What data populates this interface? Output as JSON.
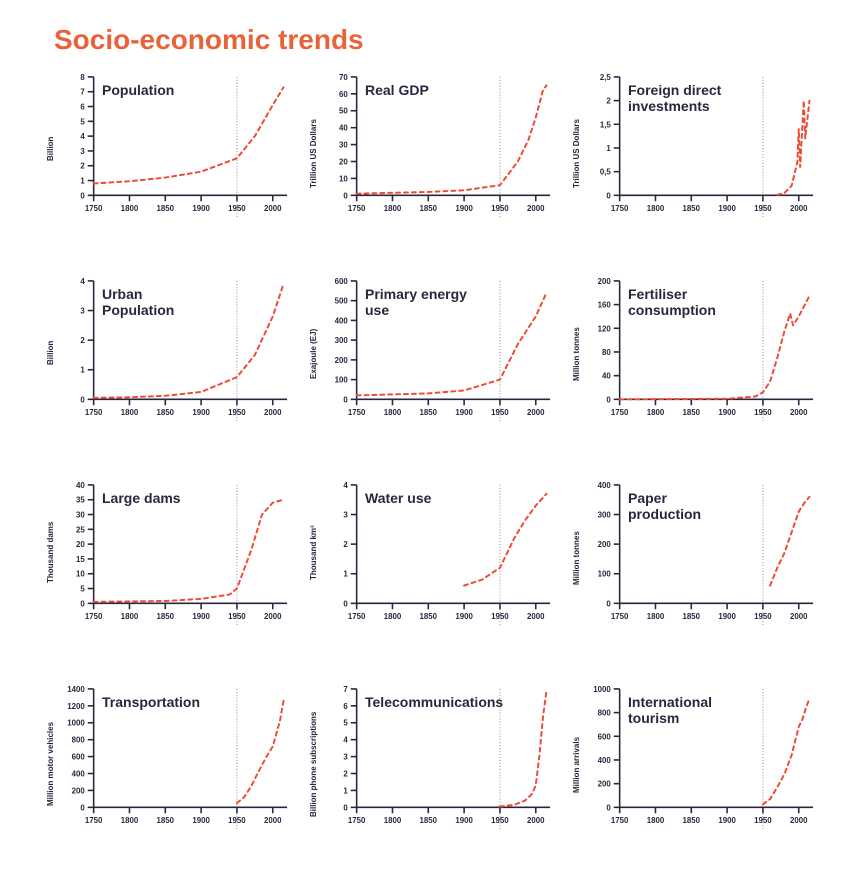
{
  "page": {
    "title": "Socio-economic trends",
    "title_color": "#e8633a",
    "title_fontsize": 28,
    "background_color": "#ffffff",
    "text_color": "#2b2640"
  },
  "chart_common": {
    "x_domain": [
      1750,
      2020
    ],
    "x_ticks": [
      1750,
      1800,
      1850,
      1900,
      1950,
      2000
    ],
    "tick_fontsize": 8,
    "tick_fontweight": 700,
    "axis_color": "#2b2640",
    "axis_width": 1.6,
    "tick_length": 6,
    "series_color": "#ef4a35",
    "series_width": 2,
    "series_dash": "4 4",
    "reference_x": 1950,
    "reference_line_color": "#7a7a88",
    "reference_dash": "1 2",
    "title_fontsize": 14,
    "title_color": "#2b2640",
    "ylabel_fontsize": 8
  },
  "charts": [
    {
      "title": "Population",
      "ylabel": "Billion",
      "y_domain": [
        0,
        8
      ],
      "y_ticks": [
        0,
        1,
        2,
        3,
        4,
        5,
        6,
        7,
        8
      ],
      "series": [
        {
          "x": 1750,
          "y": 0.8
        },
        {
          "x": 1800,
          "y": 0.95
        },
        {
          "x": 1850,
          "y": 1.2
        },
        {
          "x": 1900,
          "y": 1.6
        },
        {
          "x": 1950,
          "y": 2.5
        },
        {
          "x": 1975,
          "y": 4.0
        },
        {
          "x": 2000,
          "y": 6.1
        },
        {
          "x": 2015,
          "y": 7.3
        }
      ]
    },
    {
      "title": "Real GDP",
      "ylabel": "Trillion US Dollars",
      "y_domain": [
        0,
        70
      ],
      "y_ticks": [
        0,
        10,
        20,
        30,
        40,
        50,
        60,
        70
      ],
      "series": [
        {
          "x": 1750,
          "y": 1
        },
        {
          "x": 1800,
          "y": 1.5
        },
        {
          "x": 1850,
          "y": 2
        },
        {
          "x": 1900,
          "y": 3
        },
        {
          "x": 1950,
          "y": 6
        },
        {
          "x": 1975,
          "y": 20
        },
        {
          "x": 1990,
          "y": 33
        },
        {
          "x": 2000,
          "y": 46
        },
        {
          "x": 2010,
          "y": 62
        },
        {
          "x": 2015,
          "y": 65
        }
      ]
    },
    {
      "title": "Foreign direct\ninvestments",
      "ylabel": "Trillion US Dollars",
      "y_domain": [
        0,
        2.5
      ],
      "y_ticks": [
        0,
        0.5,
        1,
        1.5,
        2,
        2.5
      ],
      "y_tick_labels": [
        "0",
        "0,5",
        "1",
        "1,5",
        "2",
        "2,5"
      ],
      "series": [
        {
          "x": 1970,
          "y": 0.01
        },
        {
          "x": 1980,
          "y": 0.05
        },
        {
          "x": 1990,
          "y": 0.2
        },
        {
          "x": 1998,
          "y": 0.7
        },
        {
          "x": 2000,
          "y": 1.4
        },
        {
          "x": 2002,
          "y": 0.6
        },
        {
          "x": 2007,
          "y": 2.0
        },
        {
          "x": 2009,
          "y": 1.2
        },
        {
          "x": 2012,
          "y": 1.6
        },
        {
          "x": 2015,
          "y": 2.0
        }
      ]
    },
    {
      "title": "Urban\nPopulation",
      "ylabel": "Billion",
      "y_domain": [
        0,
        4
      ],
      "y_ticks": [
        0,
        1,
        2,
        3,
        4
      ],
      "series": [
        {
          "x": 1750,
          "y": 0.05
        },
        {
          "x": 1800,
          "y": 0.07
        },
        {
          "x": 1850,
          "y": 0.12
        },
        {
          "x": 1900,
          "y": 0.25
        },
        {
          "x": 1950,
          "y": 0.75
        },
        {
          "x": 1975,
          "y": 1.5
        },
        {
          "x": 2000,
          "y": 2.8
        },
        {
          "x": 2015,
          "y": 3.9
        }
      ]
    },
    {
      "title": "Primary energy\nuse",
      "ylabel": "Exajoule (EJ)",
      "y_domain": [
        0,
        600
      ],
      "y_ticks": [
        0,
        100,
        200,
        300,
        400,
        500,
        600
      ],
      "series": [
        {
          "x": 1750,
          "y": 20
        },
        {
          "x": 1800,
          "y": 25
        },
        {
          "x": 1850,
          "y": 30
        },
        {
          "x": 1900,
          "y": 45
        },
        {
          "x": 1950,
          "y": 100
        },
        {
          "x": 1975,
          "y": 280
        },
        {
          "x": 2000,
          "y": 420
        },
        {
          "x": 2015,
          "y": 540
        }
      ]
    },
    {
      "title": "Fertiliser\nconsumption",
      "ylabel": "Million tonnes",
      "y_domain": [
        0,
        200
      ],
      "y_ticks": [
        0,
        40,
        80,
        120,
        160,
        200
      ],
      "series": [
        {
          "x": 1750,
          "y": 0
        },
        {
          "x": 1900,
          "y": 1
        },
        {
          "x": 1940,
          "y": 5
        },
        {
          "x": 1950,
          "y": 12
        },
        {
          "x": 1960,
          "y": 30
        },
        {
          "x": 1970,
          "y": 70
        },
        {
          "x": 1980,
          "y": 115
        },
        {
          "x": 1988,
          "y": 145
        },
        {
          "x": 1992,
          "y": 125
        },
        {
          "x": 2000,
          "y": 140
        },
        {
          "x": 2015,
          "y": 175
        }
      ]
    },
    {
      "title": "Large dams",
      "ylabel": "Thousand dams",
      "y_domain": [
        0,
        40
      ],
      "y_ticks": [
        0,
        5,
        10,
        15,
        20,
        25,
        30,
        35,
        40
      ],
      "series": [
        {
          "x": 1750,
          "y": 0.5
        },
        {
          "x": 1850,
          "y": 0.8
        },
        {
          "x": 1900,
          "y": 1.5
        },
        {
          "x": 1940,
          "y": 3
        },
        {
          "x": 1950,
          "y": 5
        },
        {
          "x": 1970,
          "y": 18
        },
        {
          "x": 1985,
          "y": 30
        },
        {
          "x": 2000,
          "y": 34
        },
        {
          "x": 2015,
          "y": 35
        }
      ]
    },
    {
      "title": "Water use",
      "ylabel": "Thousand km³",
      "y_domain": [
        0,
        4
      ],
      "y_ticks": [
        0,
        1,
        2,
        3,
        4
      ],
      "series": [
        {
          "x": 1900,
          "y": 0.6
        },
        {
          "x": 1925,
          "y": 0.8
        },
        {
          "x": 1950,
          "y": 1.2
        },
        {
          "x": 1970,
          "y": 2.2
        },
        {
          "x": 1985,
          "y": 2.8
        },
        {
          "x": 2000,
          "y": 3.3
        },
        {
          "x": 2015,
          "y": 3.7
        }
      ]
    },
    {
      "title": "Paper\nproduction",
      "ylabel": "Million tonnes",
      "y_domain": [
        0,
        400
      ],
      "y_ticks": [
        0,
        100,
        200,
        300,
        400
      ],
      "series": [
        {
          "x": 1960,
          "y": 60
        },
        {
          "x": 1970,
          "y": 120
        },
        {
          "x": 1980,
          "y": 170
        },
        {
          "x": 1990,
          "y": 240
        },
        {
          "x": 2000,
          "y": 310
        },
        {
          "x": 2008,
          "y": 340
        },
        {
          "x": 2015,
          "y": 360
        }
      ]
    },
    {
      "title": "Transportation",
      "ylabel": "Million motor vehicles",
      "y_domain": [
        0,
        1400
      ],
      "y_ticks": [
        0,
        200,
        400,
        600,
        800,
        1000,
        1200,
        1400
      ],
      "series": [
        {
          "x": 1950,
          "y": 50
        },
        {
          "x": 1960,
          "y": 120
        },
        {
          "x": 1970,
          "y": 250
        },
        {
          "x": 1980,
          "y": 420
        },
        {
          "x": 1990,
          "y": 580
        },
        {
          "x": 1995,
          "y": 650
        },
        {
          "x": 2000,
          "y": 720
        },
        {
          "x": 2010,
          "y": 1020
        },
        {
          "x": 2015,
          "y": 1260
        }
      ]
    },
    {
      "title": "Telecommunications",
      "ylabel": "Billion phone subscriptions",
      "y_domain": [
        0,
        7
      ],
      "y_ticks": [
        0,
        1,
        2,
        3,
        4,
        5,
        6,
        7
      ],
      "series": [
        {
          "x": 1950,
          "y": 0.05
        },
        {
          "x": 1970,
          "y": 0.15
        },
        {
          "x": 1985,
          "y": 0.4
        },
        {
          "x": 1995,
          "y": 0.8
        },
        {
          "x": 2000,
          "y": 1.3
        },
        {
          "x": 2005,
          "y": 3.0
        },
        {
          "x": 2010,
          "y": 5.3
        },
        {
          "x": 2015,
          "y": 6.9
        }
      ]
    },
    {
      "title": "International\ntourism",
      "ylabel": "Million arrivals",
      "y_domain": [
        0,
        1000
      ],
      "y_ticks": [
        0,
        200,
        400,
        600,
        800,
        1000
      ],
      "series": [
        {
          "x": 1950,
          "y": 25
        },
        {
          "x": 1960,
          "y": 70
        },
        {
          "x": 1970,
          "y": 170
        },
        {
          "x": 1980,
          "y": 280
        },
        {
          "x": 1990,
          "y": 440
        },
        {
          "x": 2000,
          "y": 680
        },
        {
          "x": 2005,
          "y": 740
        },
        {
          "x": 2010,
          "y": 840
        },
        {
          "x": 2015,
          "y": 920
        }
      ]
    }
  ]
}
